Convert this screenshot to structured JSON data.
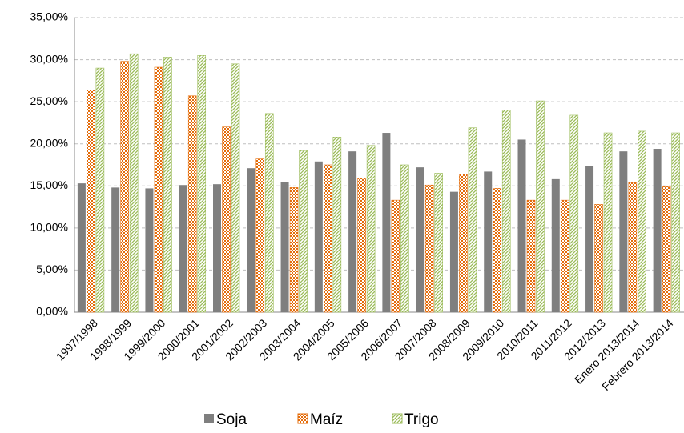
{
  "chart_data": {
    "type": "bar",
    "categories": [
      "1997/1998",
      "1998/1999",
      "1999/2000",
      "2000/2001",
      "2001/2002",
      "2002/2003",
      "2003/2004",
      "2004/2005",
      "2005/2006",
      "2006/2007",
      "2007/2008",
      "2008/2009",
      "2009/2010",
      "2010/2011",
      "2011/2012",
      "2012/2013",
      "Enero 2013/2014",
      "Febrero 2013/2014"
    ],
    "series": [
      {
        "name": "Soja",
        "color": "#7f7f7f",
        "pattern": "solid",
        "values": [
          15.3,
          14.8,
          14.7,
          15.1,
          15.2,
          17.1,
          15.5,
          17.9,
          19.1,
          21.3,
          17.2,
          14.3,
          16.7,
          20.5,
          15.8,
          17.4,
          19.1,
          19.4
        ]
      },
      {
        "name": "Maíz",
        "color": "#e46c0a",
        "pattern": "checker",
        "values": [
          26.4,
          29.8,
          29.1,
          25.7,
          22.0,
          18.2,
          14.8,
          17.5,
          15.9,
          13.3,
          15.1,
          16.4,
          14.7,
          13.3,
          13.3,
          12.8,
          15.4,
          14.9
        ]
      },
      {
        "name": "Trigo",
        "color": "#9bbb59",
        "pattern": "diagonal",
        "values": [
          29.0,
          30.7,
          30.3,
          30.5,
          29.5,
          23.6,
          19.2,
          20.8,
          19.8,
          17.5,
          16.5,
          21.9,
          24.0,
          25.1,
          23.4,
          21.3,
          21.5,
          21.3
        ]
      }
    ],
    "ylim": [
      0,
      35
    ],
    "yticks": [
      {
        "value": 0,
        "label": "0,00%"
      },
      {
        "value": 5,
        "label": "5,00%"
      },
      {
        "value": 10,
        "label": "10,00%"
      },
      {
        "value": 15,
        "label": "15,00%"
      },
      {
        "value": 20,
        "label": "20,00%"
      },
      {
        "value": 25,
        "label": "25,00%"
      },
      {
        "value": 30,
        "label": "30,00%"
      },
      {
        "value": 35,
        "label": "35,00%"
      }
    ],
    "grid": true,
    "legend": "bottom"
  }
}
